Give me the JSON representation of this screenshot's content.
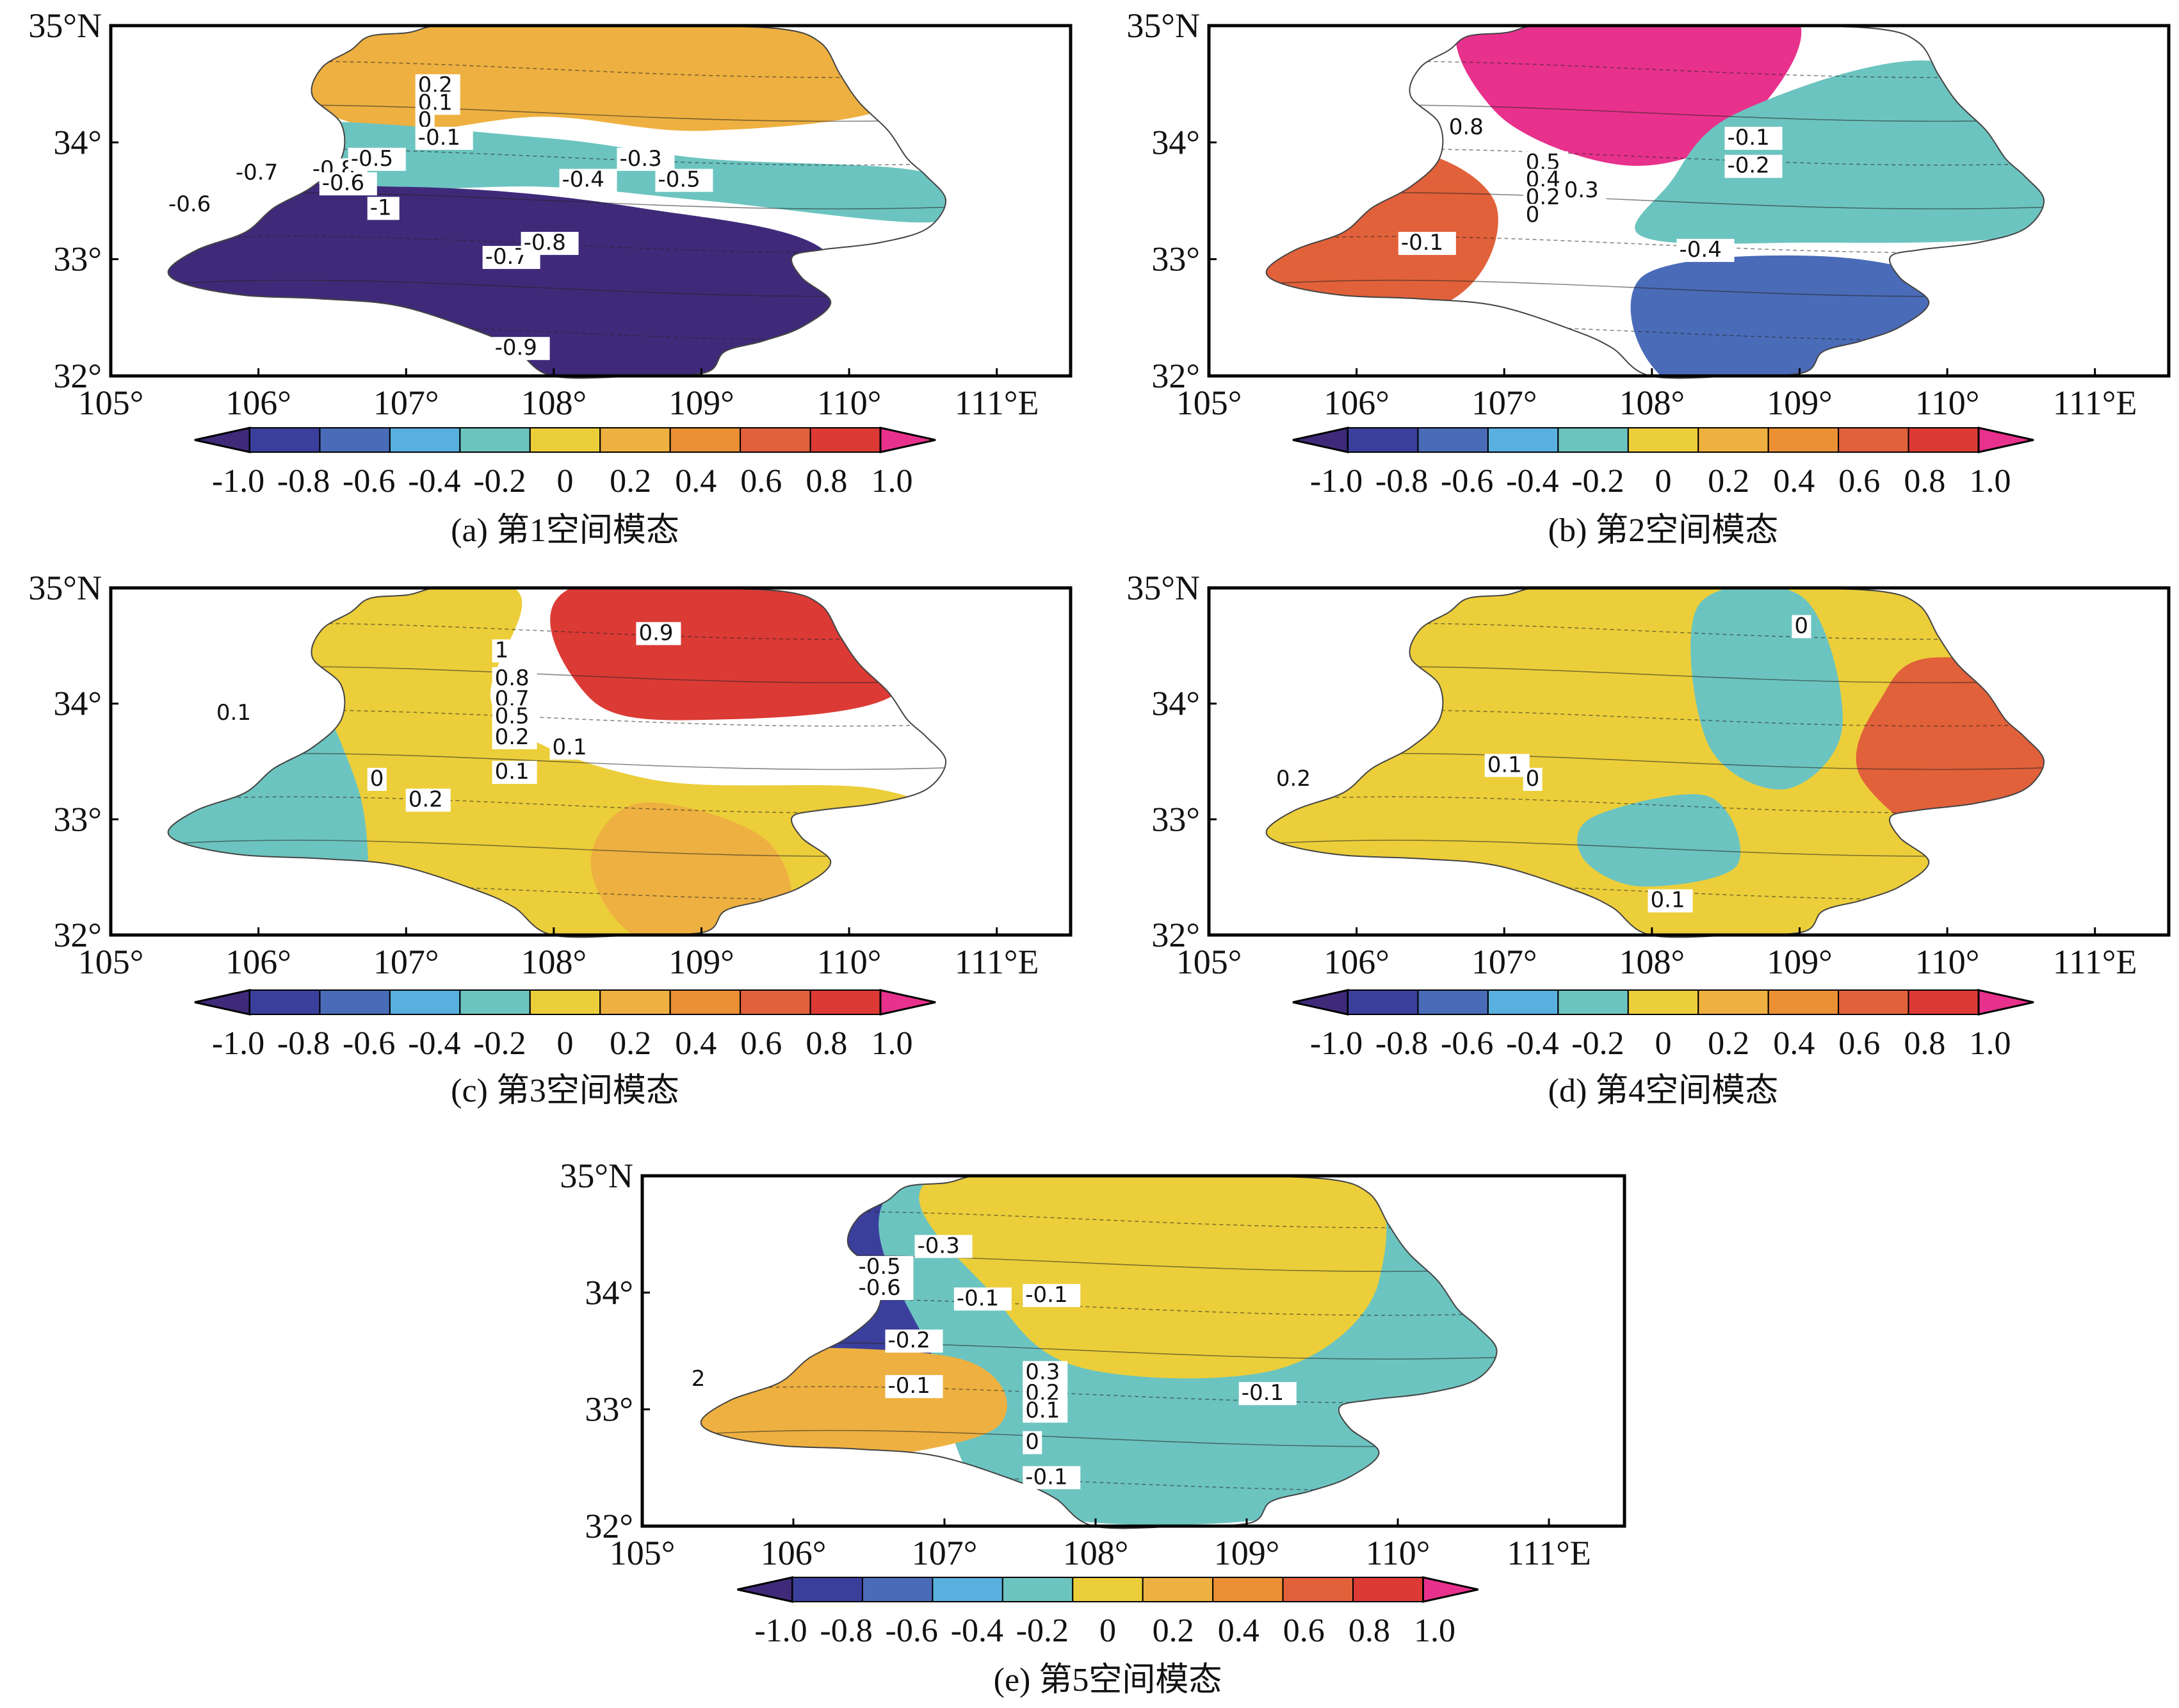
{
  "figure": {
    "colorbar": {
      "colors": [
        "#3f2a7a",
        "#3b3f9c",
        "#4a6bb8",
        "#58b0de",
        "#6cc4c0",
        "#ecce3a",
        "#eeb040",
        "#eb8f35",
        "#e1613a",
        "#dc3a35",
        "#e8318c"
      ],
      "tick_labels": [
        "-1.0",
        "-0.8",
        "-0.6",
        "-0.4",
        "-0.2",
        "0",
        "0.2",
        "0.4",
        "0.6",
        "0.8",
        "1.0"
      ]
    },
    "x_ticks": [
      "105°",
      "106°",
      "107°",
      "108°",
      "109°",
      "110°",
      "111°E"
    ],
    "y_ticks": [
      "35°N",
      "34°",
      "33°",
      "32°"
    ]
  },
  "chart_data": [
    {
      "type": "heatmap",
      "caption": "(a) 第1空间模态",
      "xlim": [
        105,
        111.5
      ],
      "ylim": [
        32,
        35
      ],
      "regions": [
        {
          "name": "north",
          "value": 0.3,
          "color_index": 6
        },
        {
          "name": "middle",
          "value": -0.2,
          "color_index": 4
        },
        {
          "name": "south",
          "value": -0.9,
          "color_index": 0
        }
      ],
      "contour_labels": [
        "0.2",
        "0.1",
        "0",
        "-0.1",
        "-0.7",
        "-0.6",
        "-0.8",
        "-0.5",
        "-0.4",
        "-0.3",
        "-0.5",
        "-1",
        "-0.6",
        "-0.7",
        "-0.8",
        "-0.9"
      ]
    },
    {
      "type": "heatmap",
      "caption": "(b) 第2空间模态",
      "xlim": [
        105,
        111.5
      ],
      "ylim": [
        32,
        35
      ],
      "regions": [
        {
          "name": "northwest",
          "value": 0.7,
          "color_index": 8
        },
        {
          "name": "north-center",
          "value": 1.0,
          "color_index": 10
        },
        {
          "name": "east",
          "value": -0.2,
          "color_index": 4
        },
        {
          "name": "south",
          "value": -0.5,
          "color_index": 2
        }
      ],
      "contour_labels": [
        "0.8",
        "0.5",
        "0.4",
        "0.2",
        "0",
        "0.3",
        "-0.1",
        "-0.1",
        "-0.2",
        "-0.4"
      ]
    },
    {
      "type": "heatmap",
      "caption": "(c) 第3空间模态",
      "xlim": [
        105,
        111.5
      ],
      "ylim": [
        32,
        35
      ],
      "regions": [
        {
          "name": "west",
          "value": -0.2,
          "color_index": 4
        },
        {
          "name": "center",
          "value": 0.1,
          "color_index": 5
        },
        {
          "name": "north-east",
          "value": 0.9,
          "color_index": 9
        },
        {
          "name": "south",
          "value": 0.3,
          "color_index": 6
        }
      ],
      "contour_labels": [
        "1",
        "0.9",
        "0.8",
        "0.7",
        "0.5",
        "0.2",
        "0.1",
        "0.1",
        "0",
        "0.2",
        "0.1"
      ]
    },
    {
      "type": "heatmap",
      "caption": "(d) 第4空间模态",
      "xlim": [
        105,
        111.5
      ],
      "ylim": [
        32,
        35
      ],
      "regions": [
        {
          "name": "central",
          "value": 0.1,
          "color_index": 5
        },
        {
          "name": "east",
          "value": 0.7,
          "color_index": 8
        },
        {
          "name": "north-pocket",
          "value": -0.1,
          "color_index": 4
        },
        {
          "name": "south-pocket",
          "value": -0.1,
          "color_index": 4
        }
      ],
      "contour_labels": [
        "0",
        "0.2",
        "0.1",
        "0",
        "0.1"
      ]
    },
    {
      "type": "heatmap",
      "caption": "(e) 第5空间模态",
      "xlim": [
        105,
        111.5
      ],
      "ylim": [
        32,
        35
      ],
      "regions": [
        {
          "name": "north-west",
          "value": -0.5,
          "color_index": 1
        },
        {
          "name": "center",
          "value": -0.1,
          "color_index": 4
        },
        {
          "name": "east",
          "value": 0.1,
          "color_index": 5
        },
        {
          "name": "south-west",
          "value": 0.3,
          "color_index": 6
        }
      ],
      "contour_labels": [
        "-0.3",
        "-0.5",
        "-0.6",
        "-0.1",
        "-0.2",
        "-0.1",
        "-0.1",
        "0.3",
        "0.2",
        "0.1",
        "0",
        "-0.1",
        "-0.1",
        "2"
      ]
    }
  ]
}
